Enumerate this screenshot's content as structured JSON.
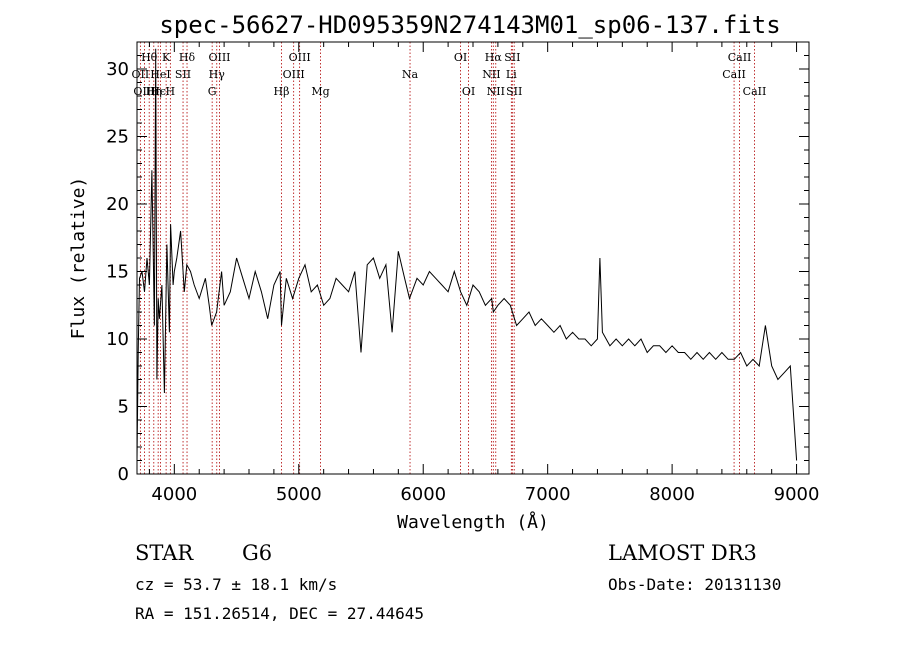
{
  "chart_data": {
    "type": "line",
    "title": "spec-56627-HD095359N274143M01_sp06-137.fits",
    "xlabel": "Wavelength (Å)",
    "ylabel": "Flux (relative)",
    "xlim": [
      3700,
      9100
    ],
    "ylim": [
      0,
      32
    ],
    "xticks": [
      4000,
      5000,
      6000,
      7000,
      8000,
      9000
    ],
    "yticks": [
      0,
      5,
      10,
      15,
      20,
      25,
      30
    ],
    "series": [
      {
        "name": "spectrum",
        "x": [
          3700,
          3710,
          3720,
          3740,
          3760,
          3780,
          3800,
          3820,
          3840,
          3850,
          3860,
          3870,
          3880,
          3900,
          3920,
          3940,
          3960,
          3970,
          3990,
          4000,
          4020,
          4050,
          4080,
          4100,
          4130,
          4160,
          4200,
          4250,
          4280,
          4300,
          4340,
          4380,
          4400,
          4450,
          4500,
          4550,
          4600,
          4650,
          4700,
          4750,
          4800,
          4850,
          4861,
          4900,
          4950,
          5000,
          5050,
          5100,
          5150,
          5200,
          5250,
          5300,
          5350,
          5400,
          5450,
          5500,
          5550,
          5600,
          5650,
          5700,
          5750,
          5800,
          5850,
          5890,
          5950,
          6000,
          6050,
          6100,
          6150,
          6200,
          6250,
          6300,
          6350,
          6400,
          6450,
          6500,
          6550,
          6563,
          6600,
          6650,
          6700,
          6750,
          6800,
          6850,
          6900,
          6950,
          7000,
          7050,
          7100,
          7150,
          7200,
          7250,
          7300,
          7350,
          7400,
          7420,
          7440,
          7500,
          7550,
          7600,
          7650,
          7700,
          7750,
          7800,
          7850,
          7900,
          7950,
          8000,
          8050,
          8100,
          8150,
          8200,
          8250,
          8300,
          8350,
          8400,
          8450,
          8500,
          8550,
          8600,
          8650,
          8700,
          8750,
          8800,
          8850,
          8900,
          8950,
          9000
        ],
        "y": [
          1.0,
          9.0,
          14.5,
          15.0,
          13.5,
          16.0,
          14.0,
          22.5,
          11.0,
          31.5,
          7.0,
          13.0,
          11.5,
          14.0,
          6.0,
          17.0,
          10.5,
          18.5,
          14.0,
          15.0,
          16.0,
          18.0,
          13.5,
          15.5,
          15.0,
          14.0,
          13.0,
          14.5,
          12.5,
          11.0,
          12.0,
          15.0,
          12.5,
          13.5,
          16.0,
          14.5,
          13.0,
          15.0,
          13.5,
          11.5,
          14.0,
          15.0,
          11.0,
          14.5,
          13.0,
          14.5,
          15.5,
          13.5,
          14.0,
          12.5,
          13.0,
          14.5,
          14.0,
          13.5,
          15.0,
          9.0,
          15.5,
          16.0,
          14.5,
          15.5,
          10.5,
          16.5,
          14.5,
          13.0,
          14.5,
          14.0,
          15.0,
          14.5,
          14.0,
          13.5,
          15.0,
          13.5,
          12.5,
          14.0,
          13.5,
          12.5,
          13.0,
          12.0,
          12.5,
          13.0,
          12.5,
          11.0,
          11.5,
          12.0,
          11.0,
          11.5,
          11.0,
          10.5,
          11.0,
          10.0,
          10.5,
          10.0,
          10.0,
          9.5,
          10.0,
          16.0,
          10.5,
          9.5,
          10.0,
          9.5,
          10.0,
          9.5,
          10.0,
          9.0,
          9.5,
          9.5,
          9.0,
          9.5,
          9.0,
          9.0,
          8.5,
          9.0,
          8.5,
          9.0,
          8.5,
          9.0,
          8.5,
          8.5,
          9.0,
          8.0,
          8.5,
          8.0,
          11.0,
          8.0,
          7.0,
          7.5,
          8.0,
          1.0
        ]
      }
    ],
    "spectral_lines": [
      {
        "label": "Hθ",
        "wave": 3798,
        "row": 1
      },
      {
        "label": "OII",
        "wave": 3727,
        "row": 2
      },
      {
        "label": "Hη",
        "wave": 3835,
        "row": 3
      },
      {
        "label": "OIII",
        "wave": 3760,
        "row": 3
      },
      {
        "label": "Hϵ",
        "wave": 3870,
        "row": 3
      },
      {
        "label": "HeI",
        "wave": 3889,
        "row": 2
      },
      {
        "label": "K",
        "wave": 3934,
        "row": 1
      },
      {
        "label": "H",
        "wave": 3968,
        "row": 3
      },
      {
        "label": "SII",
        "wave": 4070,
        "row": 2
      },
      {
        "label": "Hδ",
        "wave": 4102,
        "row": 1
      },
      {
        "label": "G",
        "wave": 4304,
        "row": 3
      },
      {
        "label": "OIII",
        "wave": 4363,
        "row": 1
      },
      {
        "label": "Hγ",
        "wave": 4341,
        "row": 2
      },
      {
        "label": "Hβ",
        "wave": 4861,
        "row": 3
      },
      {
        "label": "OIII",
        "wave": 5007,
        "row": 1
      },
      {
        "label": "OIII",
        "wave": 4959,
        "row": 2
      },
      {
        "label": "Mg",
        "wave": 5175,
        "row": 3
      },
      {
        "label": "Na",
        "wave": 5894,
        "row": 2
      },
      {
        "label": "OI",
        "wave": 6300,
        "row": 1
      },
      {
        "label": "OI",
        "wave": 6364,
        "row": 3
      },
      {
        "label": "Hα",
        "wave": 6563,
        "row": 1
      },
      {
        "label": "NII",
        "wave": 6548,
        "row": 2
      },
      {
        "label": "NII",
        "wave": 6583,
        "row": 3
      },
      {
        "label": "SII",
        "wave": 6716,
        "row": 1
      },
      {
        "label": "Li",
        "wave": 6708,
        "row": 2
      },
      {
        "label": "SII",
        "wave": 6731,
        "row": 3
      },
      {
        "label": "CaII",
        "wave": 8542,
        "row": 1
      },
      {
        "label": "CaII",
        "wave": 8498,
        "row": 2
      },
      {
        "label": "CaII",
        "wave": 8662,
        "row": 3
      }
    ]
  },
  "info": {
    "object_class": "STAR",
    "subclass": "G6",
    "survey": "LAMOST DR3",
    "cz": "cz = 53.7 ± 18.1 km/s",
    "obs_date": "Obs-Date: 20131130",
    "coords": "RA = 151.26514, DEC =  27.44645"
  }
}
